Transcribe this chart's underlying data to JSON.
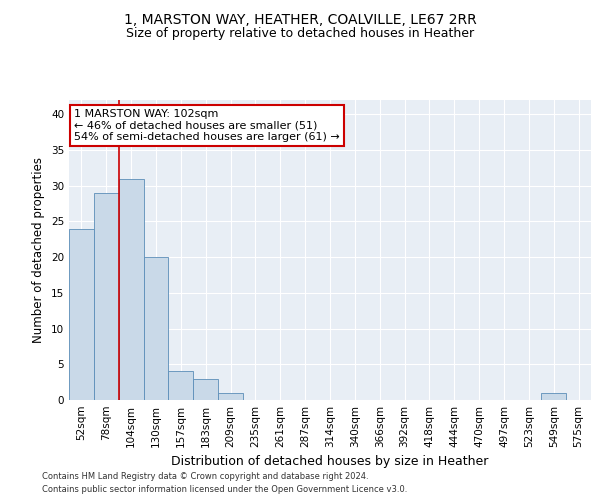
{
  "title1": "1, MARSTON WAY, HEATHER, COALVILLE, LE67 2RR",
  "title2": "Size of property relative to detached houses in Heather",
  "xlabel": "Distribution of detached houses by size in Heather",
  "ylabel": "Number of detached properties",
  "footer1": "Contains HM Land Registry data © Crown copyright and database right 2024.",
  "footer2": "Contains public sector information licensed under the Open Government Licence v3.0.",
  "bin_labels": [
    "52sqm",
    "78sqm",
    "104sqm",
    "130sqm",
    "157sqm",
    "183sqm",
    "209sqm",
    "235sqm",
    "261sqm",
    "287sqm",
    "314sqm",
    "340sqm",
    "366sqm",
    "392sqm",
    "418sqm",
    "444sqm",
    "470sqm",
    "497sqm",
    "523sqm",
    "549sqm",
    "575sqm"
  ],
  "bar_values": [
    24,
    29,
    31,
    20,
    4,
    3,
    1,
    0,
    0,
    0,
    0,
    0,
    0,
    0,
    0,
    0,
    0,
    0,
    0,
    1,
    0
  ],
  "bar_color": "#c9d9e8",
  "bar_edge_color": "#5b8db8",
  "highlight_bin_index": 2,
  "highlight_color": "#cc0000",
  "annotation_text": "1 MARSTON WAY: 102sqm\n← 46% of detached houses are smaller (51)\n54% of semi-detached houses are larger (61) →",
  "annotation_box_color": "#cc0000",
  "ylim": [
    0,
    42
  ],
  "yticks": [
    0,
    5,
    10,
    15,
    20,
    25,
    30,
    35,
    40
  ],
  "plot_bg_color": "#e8eef5",
  "title1_fontsize": 10,
  "title2_fontsize": 9,
  "xlabel_fontsize": 9,
  "ylabel_fontsize": 8.5,
  "annotation_fontsize": 8,
  "tick_fontsize": 7.5,
  "footer_fontsize": 6
}
